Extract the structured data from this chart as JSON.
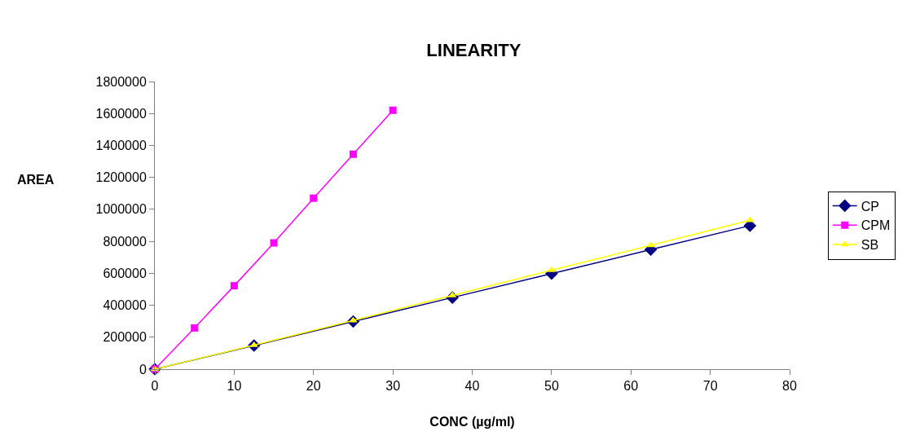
{
  "chart_data": {
    "type": "line",
    "title": "LINEARITY",
    "xlabel": "CONC (µg/ml)",
    "ylabel": "AREA",
    "xlim": [
      0,
      80
    ],
    "xticks": [
      0,
      10,
      20,
      30,
      40,
      50,
      60,
      70,
      80
    ],
    "ylim": [
      0,
      1800000
    ],
    "yticks": [
      0,
      200000,
      400000,
      600000,
      800000,
      1000000,
      1200000,
      1400000,
      1600000,
      1800000
    ],
    "legend": "right",
    "series": [
      {
        "name": "CP",
        "color": "#000080",
        "marker": "diamond",
        "x": [
          0,
          12.5,
          25,
          37.5,
          50,
          62.5,
          75
        ],
        "values": [
          0,
          148000,
          298000,
          448000,
          598000,
          748000,
          898000
        ]
      },
      {
        "name": "CPM",
        "color": "#ff00ff",
        "marker": "square",
        "x": [
          0,
          5,
          10,
          15,
          20,
          25,
          30
        ],
        "values": [
          0,
          258000,
          522000,
          790000,
          1070000,
          1345000,
          1620000
        ]
      },
      {
        "name": "SB",
        "color": "#ffff00",
        "marker": "triangle",
        "x": [
          0,
          12.5,
          25,
          37.5,
          50,
          62.5,
          75
        ],
        "values": [
          0,
          150000,
          305000,
          462000,
          620000,
          775000,
          932000
        ]
      }
    ]
  }
}
